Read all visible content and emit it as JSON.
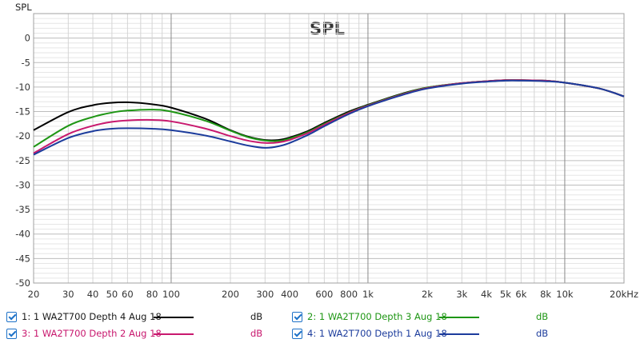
{
  "chart_data": {
    "type": "line",
    "title": "SPL",
    "ylabel": "SPL",
    "xlabel": "",
    "x_scale": "log",
    "xlim": [
      20,
      20000
    ],
    "ylim": [
      -50,
      5
    ],
    "grid": true,
    "legend_placement": "bottom",
    "x_tick_labels": [
      {
        "value": 20,
        "label": "20"
      },
      {
        "value": 30,
        "label": "30"
      },
      {
        "value": 40,
        "label": "40"
      },
      {
        "value": 50,
        "label": "50"
      },
      {
        "value": 60,
        "label": "60"
      },
      {
        "value": 80,
        "label": "80"
      },
      {
        "value": 100,
        "label": "100"
      },
      {
        "value": 200,
        "label": "200"
      },
      {
        "value": 300,
        "label": "300"
      },
      {
        "value": 400,
        "label": "400"
      },
      {
        "value": 600,
        "label": "600"
      },
      {
        "value": 800,
        "label": "800"
      },
      {
        "value": 1000,
        "label": "1k"
      },
      {
        "value": 2000,
        "label": "2k"
      },
      {
        "value": 3000,
        "label": "3k"
      },
      {
        "value": 4000,
        "label": "4k"
      },
      {
        "value": 5000,
        "label": "5k"
      },
      {
        "value": 6000,
        "label": "6k"
      },
      {
        "value": 8000,
        "label": "8k"
      },
      {
        "value": 10000,
        "label": "10k"
      },
      {
        "value": 20000,
        "label": "20kHz"
      }
    ],
    "y_ticks": [
      0,
      -5,
      -10,
      -15,
      -20,
      -25,
      -30,
      -35,
      -40,
      -45,
      -50
    ],
    "series": [
      {
        "name": "1: 1 WA2T700 Depth 4 Aug 18",
        "unit": "dB",
        "color": "#000000",
        "x": [
          20,
          30,
          40,
          50,
          60,
          80,
          100,
          150,
          200,
          250,
          300,
          350,
          400,
          500,
          600,
          800,
          1000,
          1500,
          2000,
          3000,
          4000,
          5000,
          6000,
          8000,
          10000,
          15000,
          20000
        ],
        "y": [
          -18.8,
          -15.1,
          -13.7,
          -13.2,
          -13.1,
          -13.5,
          -14.2,
          -16.5,
          -18.8,
          -20.2,
          -20.8,
          -20.8,
          -20.3,
          -18.9,
          -17.3,
          -15.0,
          -13.6,
          -11.3,
          -10.1,
          -9.2,
          -8.8,
          -8.6,
          -8.6,
          -8.7,
          -9.1,
          -10.3,
          -11.9
        ]
      },
      {
        "name": "2: 1 WA2T700 Depth 3 Aug 18",
        "unit": "dB",
        "color": "#1e9614",
        "x": [
          20,
          30,
          40,
          50,
          60,
          80,
          100,
          150,
          200,
          250,
          300,
          350,
          400,
          500,
          600,
          800,
          1000,
          1500,
          2000,
          3000,
          4000,
          5000,
          6000,
          8000,
          10000,
          15000,
          20000
        ],
        "y": [
          -22.2,
          -17.9,
          -16.1,
          -15.2,
          -14.8,
          -14.6,
          -15.0,
          -16.9,
          -18.9,
          -20.3,
          -20.9,
          -21.0,
          -20.5,
          -19.1,
          -17.5,
          -15.2,
          -13.7,
          -11.4,
          -10.1,
          -9.2,
          -8.8,
          -8.6,
          -8.6,
          -8.7,
          -9.1,
          -10.3,
          -11.9
        ]
      },
      {
        "name": "3: 1 WA2T700 Depth 2 Aug 18",
        "unit": "dB",
        "color": "#c8186e",
        "x": [
          20,
          30,
          40,
          50,
          60,
          80,
          100,
          150,
          200,
          250,
          300,
          350,
          400,
          500,
          600,
          800,
          1000,
          1500,
          2000,
          3000,
          4000,
          5000,
          6000,
          8000,
          10000,
          15000,
          20000
        ],
        "y": [
          -23.5,
          -19.6,
          -17.9,
          -17.1,
          -16.8,
          -16.7,
          -17.0,
          -18.5,
          -20.0,
          -21.0,
          -21.4,
          -21.3,
          -20.8,
          -19.3,
          -17.7,
          -15.3,
          -13.8,
          -11.5,
          -10.2,
          -9.2,
          -8.8,
          -8.6,
          -8.6,
          -8.7,
          -9.1,
          -10.3,
          -11.9
        ]
      },
      {
        "name": "4: 1 WA2T700 Depth 1 Aug 18",
        "unit": "dB",
        "color": "#1c3c9c",
        "x": [
          20,
          30,
          40,
          50,
          60,
          80,
          100,
          150,
          200,
          250,
          300,
          350,
          400,
          500,
          600,
          800,
          1000,
          1500,
          2000,
          3000,
          4000,
          5000,
          6000,
          8000,
          10000,
          15000,
          20000
        ],
        "y": [
          -23.8,
          -20.4,
          -19.0,
          -18.5,
          -18.4,
          -18.5,
          -18.8,
          -19.9,
          -21.1,
          -22.0,
          -22.4,
          -22.1,
          -21.4,
          -19.7,
          -18.0,
          -15.5,
          -13.9,
          -11.6,
          -10.3,
          -9.3,
          -8.9,
          -8.7,
          -8.7,
          -8.8,
          -9.1,
          -10.3,
          -11.9
        ]
      }
    ]
  },
  "legend": [
    {
      "label": "1: 1 WA2T700 Depth 4 Aug 18",
      "unit": "dB",
      "color": "#000000",
      "label_color": "#1a1a1a"
    },
    {
      "label": "2: 1 WA2T700 Depth 3 Aug 18",
      "unit": "dB",
      "color": "#1e9614",
      "label_color": "#1e9614"
    },
    {
      "label": "3: 1 WA2T700 Depth 2 Aug 18",
      "unit": "dB",
      "color": "#c8186e",
      "label_color": "#c8186e"
    },
    {
      "label": "4: 1 WA2T700 Depth 1 Aug 18",
      "unit": "dB",
      "color": "#1c3c9c",
      "label_color": "#1c3c9c"
    }
  ]
}
